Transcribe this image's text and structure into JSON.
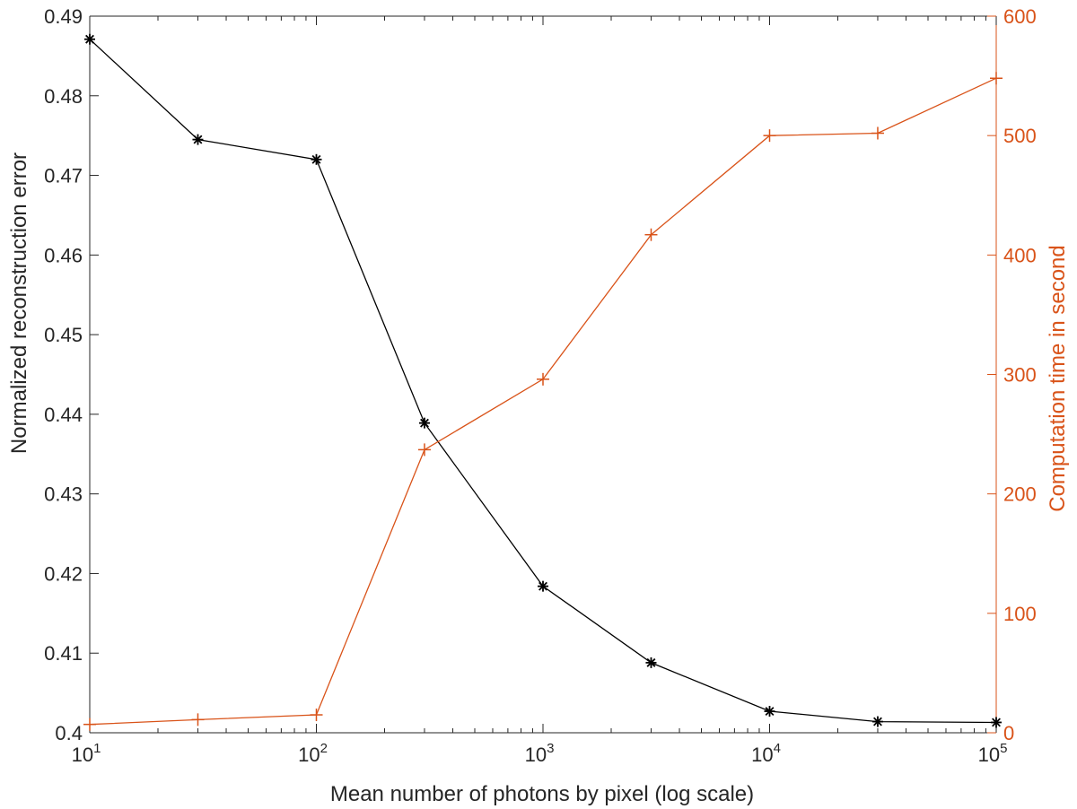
{
  "chart_data": {
    "type": "line",
    "title": "",
    "xlabel": "Mean number of photons by pixel (log scale)",
    "ylabel": "Normalized reconstruction error",
    "y2label": "Computation time in second",
    "xscale": "log",
    "xlim": [
      10,
      100000
    ],
    "ylim": [
      0.4,
      0.49
    ],
    "y2lim": [
      0,
      600
    ],
    "grid": false,
    "legend": "none",
    "x_ticks": [
      {
        "base": "10",
        "exp": "1",
        "value": 10
      },
      {
        "base": "10",
        "exp": "2",
        "value": 100
      },
      {
        "base": "10",
        "exp": "3",
        "value": 1000
      },
      {
        "base": "10",
        "exp": "4",
        "value": 10000
      },
      {
        "base": "10",
        "exp": "5",
        "value": 100000
      }
    ],
    "y_ticks": [
      "0.4",
      "0.41",
      "0.42",
      "0.43",
      "0.44",
      "0.45",
      "0.46",
      "0.47",
      "0.48",
      "0.49"
    ],
    "y2_ticks": [
      "0",
      "100",
      "200",
      "300",
      "400",
      "500",
      "600"
    ],
    "x": [
      10,
      30,
      100,
      300,
      1000,
      3000,
      10000,
      30000,
      100000
    ],
    "series": [
      {
        "axis": "left",
        "color": "#000000",
        "marker": "asterisk",
        "values": [
          0.4871,
          0.4745,
          0.472,
          0.4389,
          0.4184,
          0.4088,
          0.4027,
          0.4014,
          0.4013
        ]
      },
      {
        "axis": "right",
        "color": "#D95319",
        "marker": "plus",
        "values": [
          7,
          11,
          15,
          237,
          296,
          417,
          500,
          502,
          548
        ]
      }
    ]
  }
}
